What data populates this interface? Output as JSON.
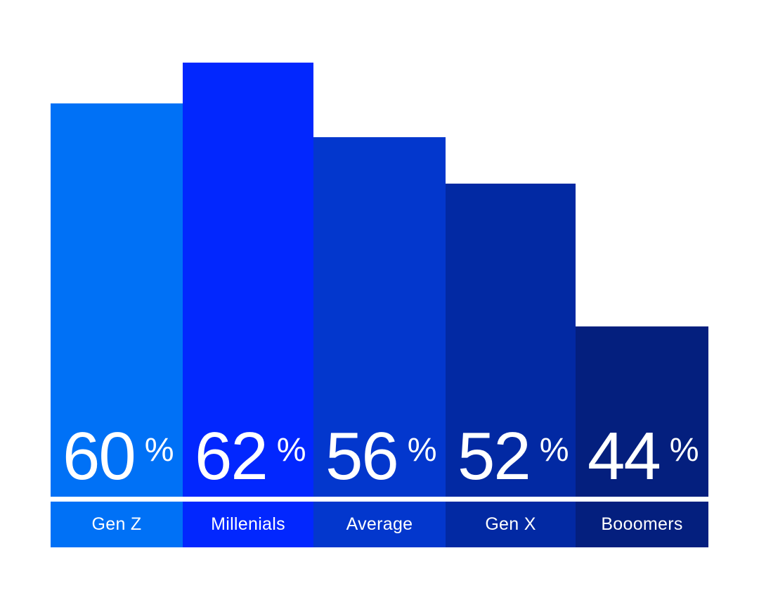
{
  "chart_data": {
    "type": "bar",
    "title": "",
    "categories": [
      "Gen Z",
      "Millenials",
      "Average",
      "Gen X",
      "Booomers"
    ],
    "values": [
      60,
      62,
      56,
      52,
      44
    ],
    "unit": "%",
    "value_label_position": "inside-bottom",
    "category_label_position": "band-below-bars",
    "background_color": "#FFFFFF",
    "text_color": "#FFFFFF",
    "bars": [
      {
        "category": "Gen Z",
        "value": 60,
        "value_label": "60",
        "unit_label": "%",
        "color": "#0071F6"
      },
      {
        "category": "Millenials",
        "value": 62,
        "value_label": "62",
        "unit_label": "%",
        "color": "#0227FE"
      },
      {
        "category": "Average",
        "value": 56,
        "value_label": "56",
        "unit_label": "%",
        "color": "#0337CD"
      },
      {
        "category": "Gen X",
        "value": 52,
        "value_label": "52",
        "unit_label": "%",
        "color": "#0229A3"
      },
      {
        "category": "Booomers",
        "value": 44,
        "value_label": "44",
        "unit_label": "%",
        "color": "#041F7E"
      }
    ]
  }
}
